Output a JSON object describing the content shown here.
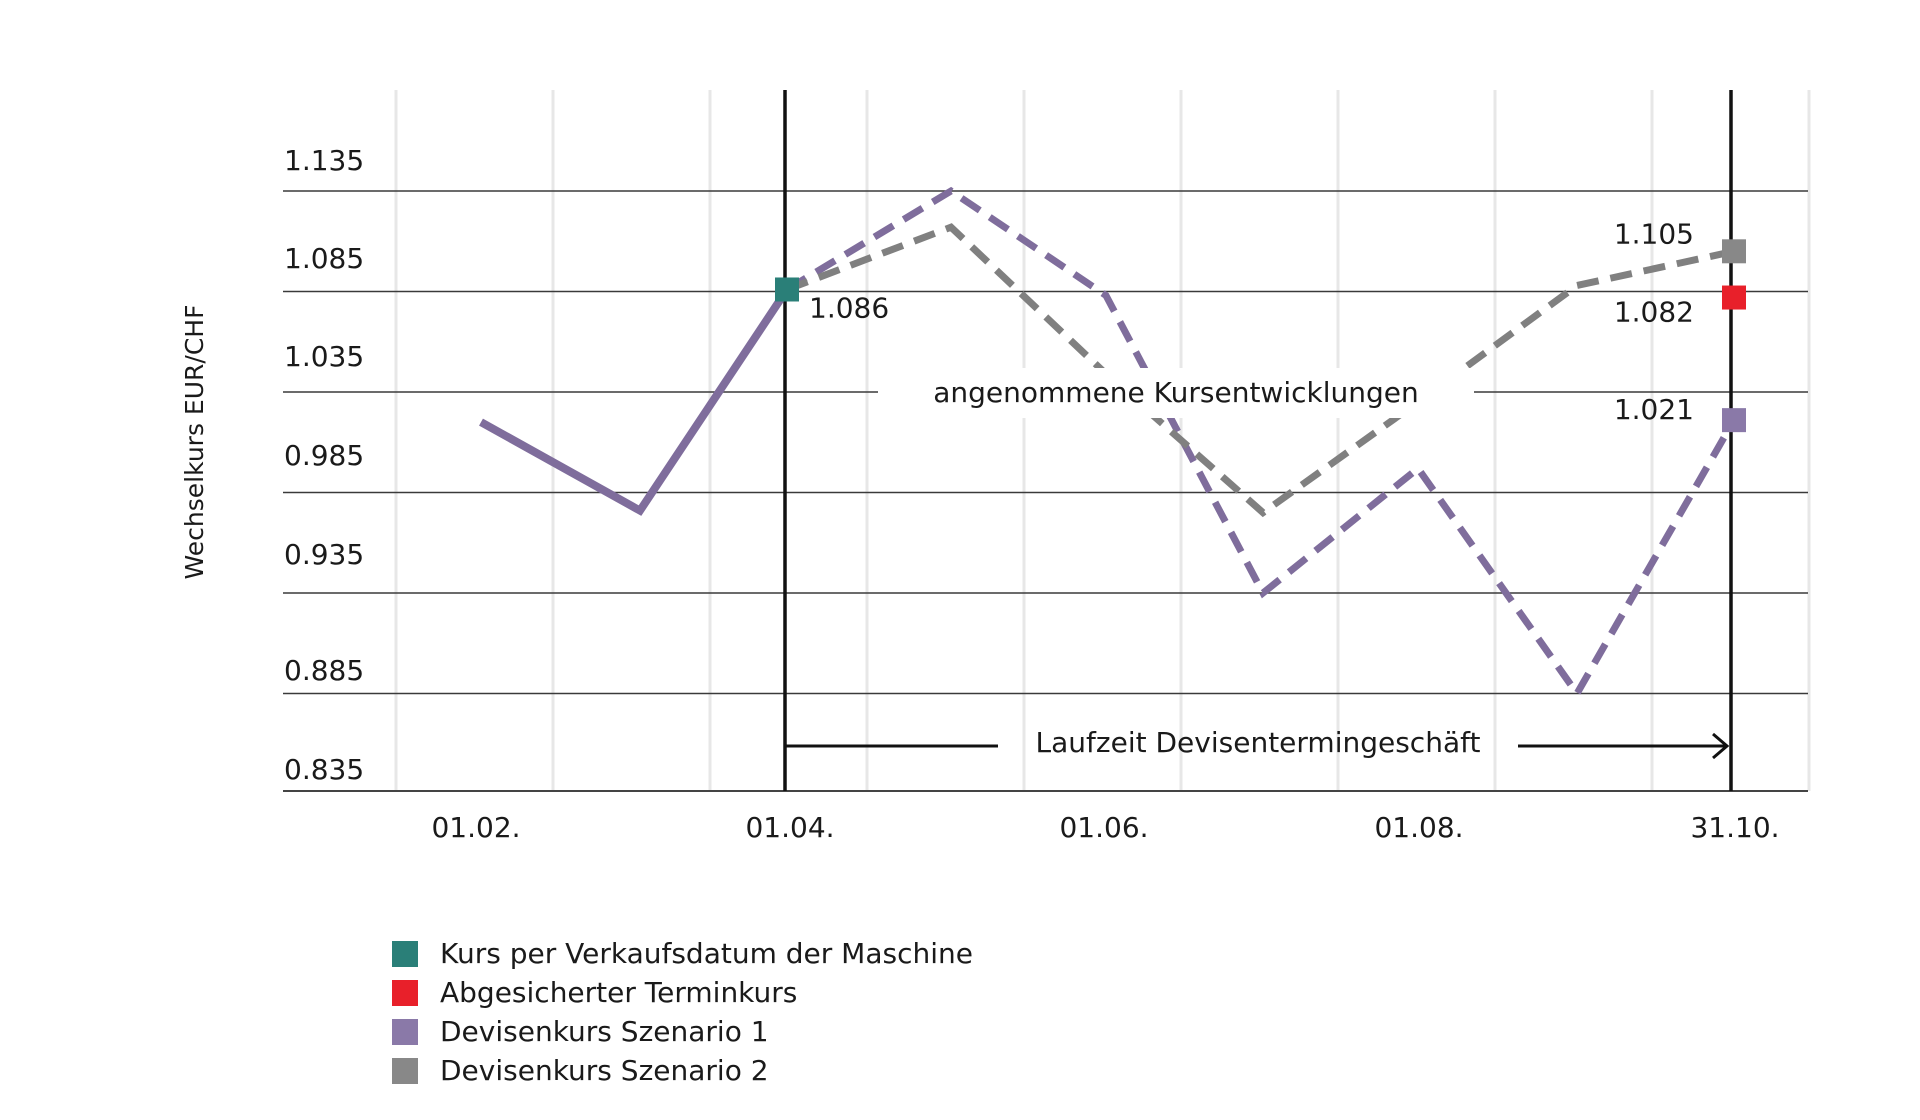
{
  "chart_data": {
    "type": "line",
    "ylabel": "Wechselkurs EUR/CHF",
    "xlabel": "",
    "y_ticks": [
      "1.135",
      "1.085",
      "1.035",
      "0.985",
      "0.935",
      "0.885",
      "0.835"
    ],
    "x_ticks": [
      "01.02.",
      "01.04.",
      "01.06.",
      "01.08.",
      "31.10."
    ],
    "ylim": [
      0.835,
      1.185
    ],
    "grid": true,
    "series": [
      {
        "name": "Devisenkurs Szenario 1",
        "color": "#7f6d9c",
        "style": "solid",
        "points": [
          [
            "01.02.",
            1.02
          ],
          [
            "01.03.",
            0.976
          ],
          [
            "01.04.",
            1.086
          ]
        ]
      },
      {
        "name": "Devisenkurs Szenario 1",
        "color": "#7f6d9c",
        "style": "dashed",
        "points": [
          [
            "01.04.",
            1.086
          ],
          [
            "01.05.",
            1.135
          ],
          [
            "01.06.",
            1.083
          ],
          [
            "01.07.",
            0.935
          ],
          [
            "01.08.",
            0.997
          ],
          [
            "01.09.",
            0.885
          ],
          [
            "31.10.",
            1.021
          ]
        ]
      },
      {
        "name": "Devisenkurs Szenario 2",
        "color": "#808080",
        "style": "dashed",
        "points": [
          [
            "01.04.",
            1.086
          ],
          [
            "01.05.",
            1.117
          ],
          [
            "01.06.",
            1.044
          ],
          [
            "01.07.",
            0.975
          ],
          [
            "01.08.",
            1.03
          ],
          [
            "01.09.",
            1.088
          ],
          [
            "31.10.",
            1.105
          ]
        ]
      }
    ],
    "markers": [
      {
        "name": "Kurs per Verkaufsdatum der Maschine",
        "x": "01.04.",
        "y": 1.086,
        "color": "#2a7f78",
        "label": "1.086"
      },
      {
        "name": "Abgesicherter Terminkurs",
        "x": "31.10.",
        "y": 1.082,
        "color": "#e8202a",
        "label": "1.082"
      },
      {
        "name": "Devisenkurs Szenario 1",
        "x": "31.10.",
        "y": 1.021,
        "color": "#8a79a8",
        "label": "1.021"
      },
      {
        "name": "Devisenkurs Szenario 2",
        "x": "31.10.",
        "y": 1.105,
        "color": "#888888",
        "label": "1.105"
      }
    ],
    "annotations": {
      "scenarios": "angenommene Kursentwicklungen",
      "term": "Laufzeit Devisentermingeschäft"
    },
    "legend": {
      "position": "bottom-left",
      "items": [
        {
          "label": "Kurs per Verkaufsdatum der Maschine",
          "color": "#2a7f78"
        },
        {
          "label": "Abgesicherter Terminkurs",
          "color": "#e8202a"
        },
        {
          "label": "Devisenkurs Szenario 1",
          "color": "#8a79a8"
        },
        {
          "label": "Devisenkurs Szenario 2",
          "color": "#888888"
        }
      ]
    }
  }
}
